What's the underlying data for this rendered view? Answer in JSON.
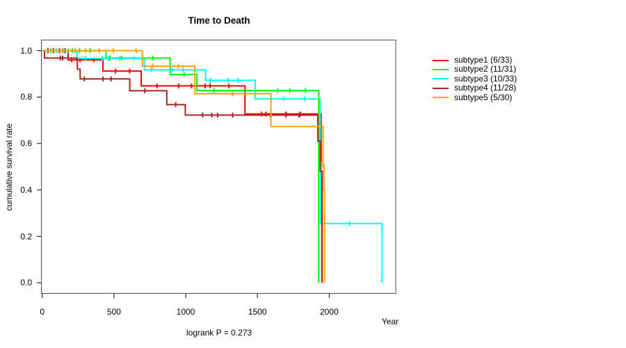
{
  "title": "Time to Death",
  "x_axis": {
    "label": "Year",
    "ticks": [
      0,
      500,
      1000,
      1500,
      2000
    ]
  },
  "y_axis": {
    "label": "cumulative survival rate",
    "ticks": [
      "0.0",
      "0.2",
      "0.4",
      "0.6",
      "0.8",
      "1.0"
    ]
  },
  "footer": {
    "logrank_label": "logrank P = 0.273"
  },
  "legend": {
    "position": "right-outside",
    "items": [
      {
        "label": "subtype1 (6/33)",
        "color": "#FF0000"
      },
      {
        "label": "subtype2 (11/31)",
        "color": "#00FF00"
      },
      {
        "label": "subtype3 (10/33)",
        "color": "#00FFFF"
      },
      {
        "label": "subtype4 (11/28)",
        "color": "#B22222"
      },
      {
        "label": "subtype5 (5/30)",
        "color": "#FFA500"
      }
    ]
  },
  "chart_data": {
    "type": "line",
    "subtype": "kaplan-meier-step",
    "title": "Time to Death",
    "xlabel": "Year",
    "ylabel": "cumulative survival rate",
    "xlim": [
      0,
      2460
    ],
    "ylim": [
      0,
      1.0
    ],
    "grid": false,
    "legend_position": "right-outside",
    "annotation": "logrank P = 0.273",
    "series": [
      {
        "id": "subtype1",
        "name": "subtype1 (6/33)",
        "color": "#FF0000",
        "steps": [
          [
            181,
            0.96
          ],
          [
            423,
            0.912
          ],
          [
            690,
            0.848
          ],
          [
            1413,
            0.727
          ],
          [
            1944,
            0.48
          ],
          [
            1951,
            0.0
          ]
        ],
        "censors": [
          [
            40,
            1
          ],
          [
            78,
            1
          ],
          [
            120,
            1
          ],
          [
            160,
            1
          ],
          [
            205,
            0.96
          ],
          [
            263,
            0.96
          ],
          [
            360,
            0.96
          ],
          [
            511,
            0.912
          ],
          [
            610,
            0.912
          ],
          [
            800,
            0.848
          ],
          [
            950,
            0.848
          ],
          [
            1040,
            0.848
          ],
          [
            1135,
            0.848
          ],
          [
            1170,
            0.848
          ],
          [
            1300,
            0.848
          ],
          [
            1529,
            0.727
          ],
          [
            1560,
            0.727
          ],
          [
            1699,
            0.727
          ],
          [
            1800,
            0.727
          ]
        ]
      },
      {
        "id": "subtype2",
        "name": "subtype2 (11/31)",
        "color": "#00FF00",
        "steps": [
          [
            445,
            0.968
          ],
          [
            892,
            0.897
          ],
          [
            1078,
            0.828
          ],
          [
            1927,
            0.0
          ]
        ],
        "censors": [
          [
            60,
            1
          ],
          [
            210,
            1
          ],
          [
            260,
            1
          ],
          [
            334,
            1
          ],
          [
            471,
            0.968
          ],
          [
            553,
            0.968
          ],
          [
            700,
            0.968
          ],
          [
            771,
            0.968
          ],
          [
            989,
            0.897
          ],
          [
            1197,
            0.828
          ],
          [
            1642,
            0.828
          ],
          [
            1725,
            0.828
          ],
          [
            1835,
            0.828
          ]
        ]
      },
      {
        "id": "subtype3",
        "name": "subtype3 (10/33)",
        "color": "#00FFFF",
        "steps": [
          [
            242,
            0.966
          ],
          [
            712,
            0.917
          ],
          [
            1139,
            0.872
          ],
          [
            1484,
            0.792
          ],
          [
            1937,
            0.52
          ],
          [
            1941,
            0.255
          ],
          [
            2368,
            0.0
          ]
        ],
        "censors": [
          [
            100,
            1
          ],
          [
            150,
            1
          ],
          [
            185,
            1
          ],
          [
            300,
            0.966
          ],
          [
            420,
            0.966
          ],
          [
            462,
            0.966
          ],
          [
            540,
            0.966
          ],
          [
            640,
            0.966
          ],
          [
            760,
            0.917
          ],
          [
            905,
            0.917
          ],
          [
            980,
            0.917
          ],
          [
            1173,
            0.872
          ],
          [
            1294,
            0.872
          ],
          [
            1366,
            0.872
          ],
          [
            1682,
            0.792
          ],
          [
            1830,
            0.792
          ],
          [
            2142,
            0.255
          ]
        ]
      },
      {
        "id": "subtype4",
        "name": "subtype4 (11/28)",
        "color": "#B22222",
        "steps": [
          [
            16,
            0.968
          ],
          [
            245,
            0.92
          ],
          [
            264,
            0.878
          ],
          [
            610,
            0.827
          ],
          [
            868,
            0.767
          ],
          [
            997,
            0.722
          ],
          [
            1921,
            0.61
          ],
          [
            1937,
            0.48
          ],
          [
            1949,
            0.0
          ]
        ],
        "censors": [
          [
            126,
            0.968
          ],
          [
            142,
            0.968
          ],
          [
            293,
            0.878
          ],
          [
            423,
            0.878
          ],
          [
            480,
            0.878
          ],
          [
            715,
            0.827
          ],
          [
            930,
            0.767
          ],
          [
            1118,
            0.722
          ],
          [
            1182,
            0.722
          ],
          [
            1222,
            0.722
          ],
          [
            1327,
            0.722
          ],
          [
            1590,
            0.722
          ],
          [
            1699,
            0.722
          ],
          [
            1790,
            0.722
          ]
        ]
      },
      {
        "id": "subtype5",
        "name": "subtype5 (5/30)",
        "color": "#FFA500",
        "steps": [
          [
            698,
            0.933
          ],
          [
            1064,
            0.814
          ],
          [
            1594,
            0.673
          ],
          [
            1958,
            0.5
          ],
          [
            1963,
            0.4
          ],
          [
            1968,
            0.0
          ]
        ],
        "censors": [
          [
            140,
            1
          ],
          [
            230,
            1
          ],
          [
            301,
            1
          ],
          [
            398,
            1
          ],
          [
            495,
            1
          ],
          [
            655,
            1
          ],
          [
            770,
            0.933
          ],
          [
            948,
            0.933
          ],
          [
            1327,
            0.814
          ],
          [
            1964,
            0.5
          ]
        ]
      }
    ]
  }
}
